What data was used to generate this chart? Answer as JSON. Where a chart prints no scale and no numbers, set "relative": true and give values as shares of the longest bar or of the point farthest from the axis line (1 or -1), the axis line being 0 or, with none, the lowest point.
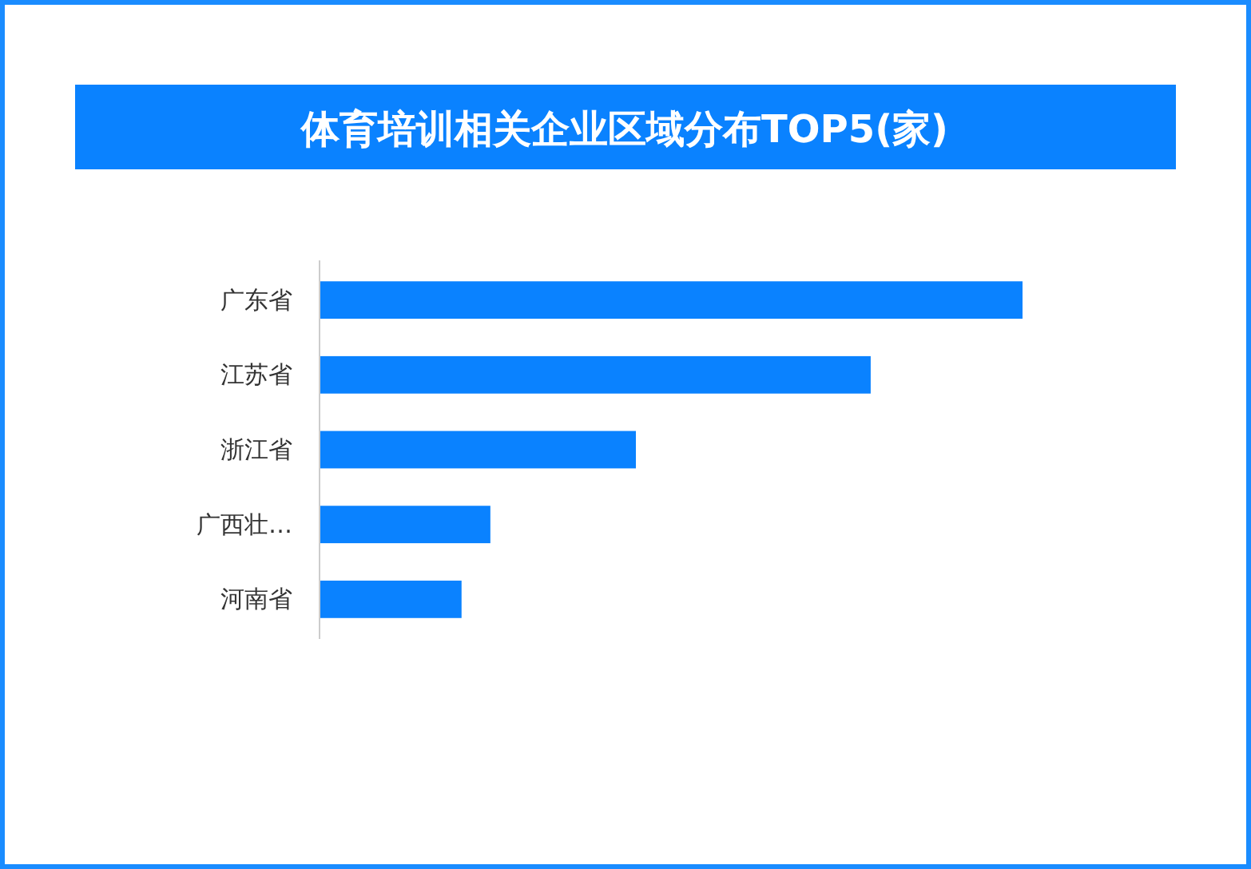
{
  "chart_data": {
    "type": "bar",
    "orientation": "horizontal",
    "relative": true,
    "title": "体育培训相关企业区域分布TOP5(家)",
    "categories": [
      "广东省",
      "江苏省",
      "浙江省",
      "广西壮…",
      "河南省"
    ],
    "values": [
      1,
      0.784,
      0.45,
      0.243,
      0.202
    ],
    "color": "#0a82ff"
  }
}
